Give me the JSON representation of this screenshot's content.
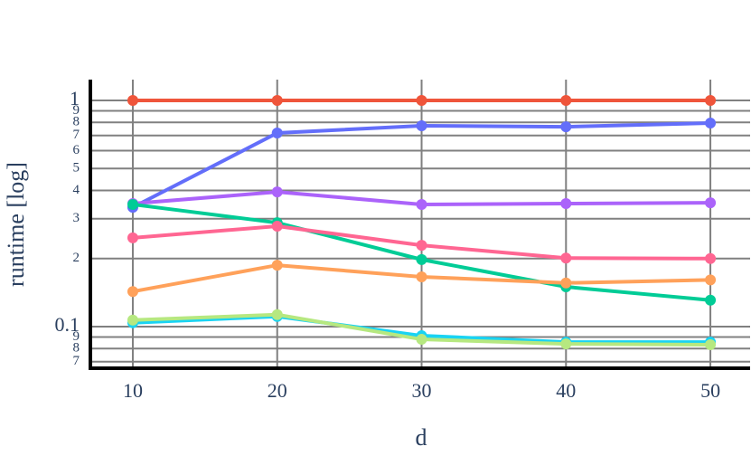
{
  "chart_data": {
    "type": "line",
    "x_label": "d",
    "y_label": "runtime [log]",
    "log_y": true,
    "grid": true,
    "x": [
      10,
      20,
      30,
      40,
      50
    ],
    "xlim": [
      7.06,
      52.75
    ],
    "xticks": [
      10,
      20,
      30,
      40,
      50
    ],
    "ylim": [
      0.0655,
      1.236
    ],
    "yticks": [
      {
        "value": 0.07,
        "label": "7"
      },
      {
        "value": 0.08,
        "label": "8"
      },
      {
        "value": 0.09,
        "label": "9"
      },
      0.1,
      {
        "value": 0.2,
        "label": "2"
      },
      {
        "value": 0.3,
        "label": "3"
      },
      {
        "value": 0.4,
        "label": "4"
      },
      {
        "value": 0.5,
        "label": "5"
      },
      {
        "value": 0.6,
        "label": "6"
      },
      {
        "value": 0.7,
        "label": "7"
      },
      {
        "value": 0.8,
        "label": "8"
      },
      {
        "value": 0.9,
        "label": "9"
      },
      1
    ],
    "series": [
      {
        "color": "#ef553b",
        "values": [
          1,
          1,
          1,
          1,
          1
        ]
      },
      {
        "color": "#636efa",
        "values": [
          0.337,
          0.718,
          0.773,
          0.765,
          0.794
        ]
      },
      {
        "color": "#ab63fa",
        "values": [
          0.35,
          0.394,
          0.347,
          0.35,
          0.353
        ]
      },
      {
        "color": "#00cc96",
        "values": [
          0.347,
          0.288,
          0.198,
          0.15,
          0.131
        ]
      },
      {
        "color": "#ff6692",
        "values": [
          0.247,
          0.278,
          0.229,
          0.201,
          0.2
        ]
      },
      {
        "color": "#ffa15a",
        "values": [
          0.143,
          0.187,
          0.166,
          0.156,
          0.161
        ]
      },
      {
        "color": "#19d3f3",
        "values": [
          0.104,
          0.111,
          0.0912,
          0.0855,
          0.0855
        ]
      },
      {
        "color": "#b6e880",
        "values": [
          0.107,
          0.113,
          0.0879,
          0.0839,
          0.0832
        ]
      }
    ]
  }
}
